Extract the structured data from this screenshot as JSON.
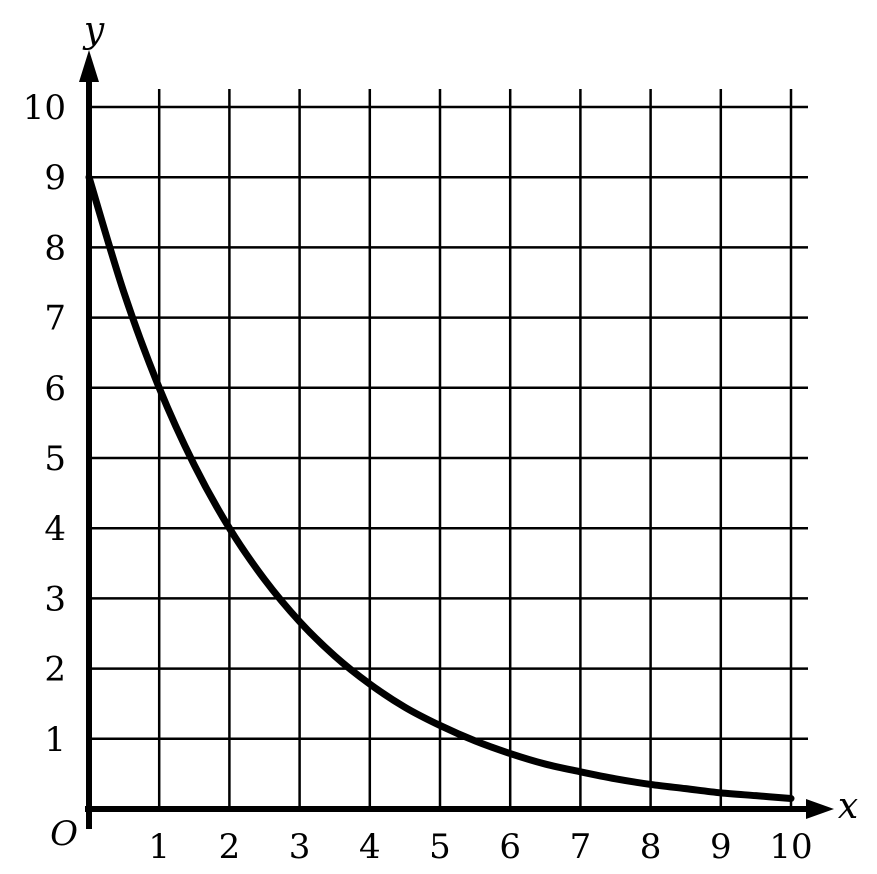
{
  "chart_data": {
    "type": "line",
    "xlabel": "x",
    "ylabel": "y",
    "origin_label": "O",
    "xlim": [
      0,
      10
    ],
    "ylim": [
      0,
      10
    ],
    "grid": true,
    "x_ticks": [
      "1",
      "2",
      "3",
      "4",
      "5",
      "6",
      "7",
      "8",
      "9",
      "10"
    ],
    "y_ticks": [
      "1",
      "2",
      "3",
      "4",
      "5",
      "6",
      "7",
      "8",
      "9",
      "10"
    ],
    "series": [
      {
        "x": [
          0,
          0.5,
          1,
          1.5,
          2,
          2.5,
          3,
          3.5,
          4,
          4.5,
          5,
          5.5,
          6,
          6.5,
          7,
          7.5,
          8,
          8.5,
          9,
          9.5,
          10
        ],
        "y": [
          9,
          7.35,
          6,
          4.9,
          4,
          3.27,
          2.67,
          2.18,
          1.78,
          1.45,
          1.19,
          0.97,
          0.79,
          0.64,
          0.53,
          0.43,
          0.35,
          0.29,
          0.23,
          0.19,
          0.15
        ]
      }
    ],
    "colors": {
      "line": "#000000",
      "grid": "#000000",
      "axis": "#000000"
    }
  }
}
